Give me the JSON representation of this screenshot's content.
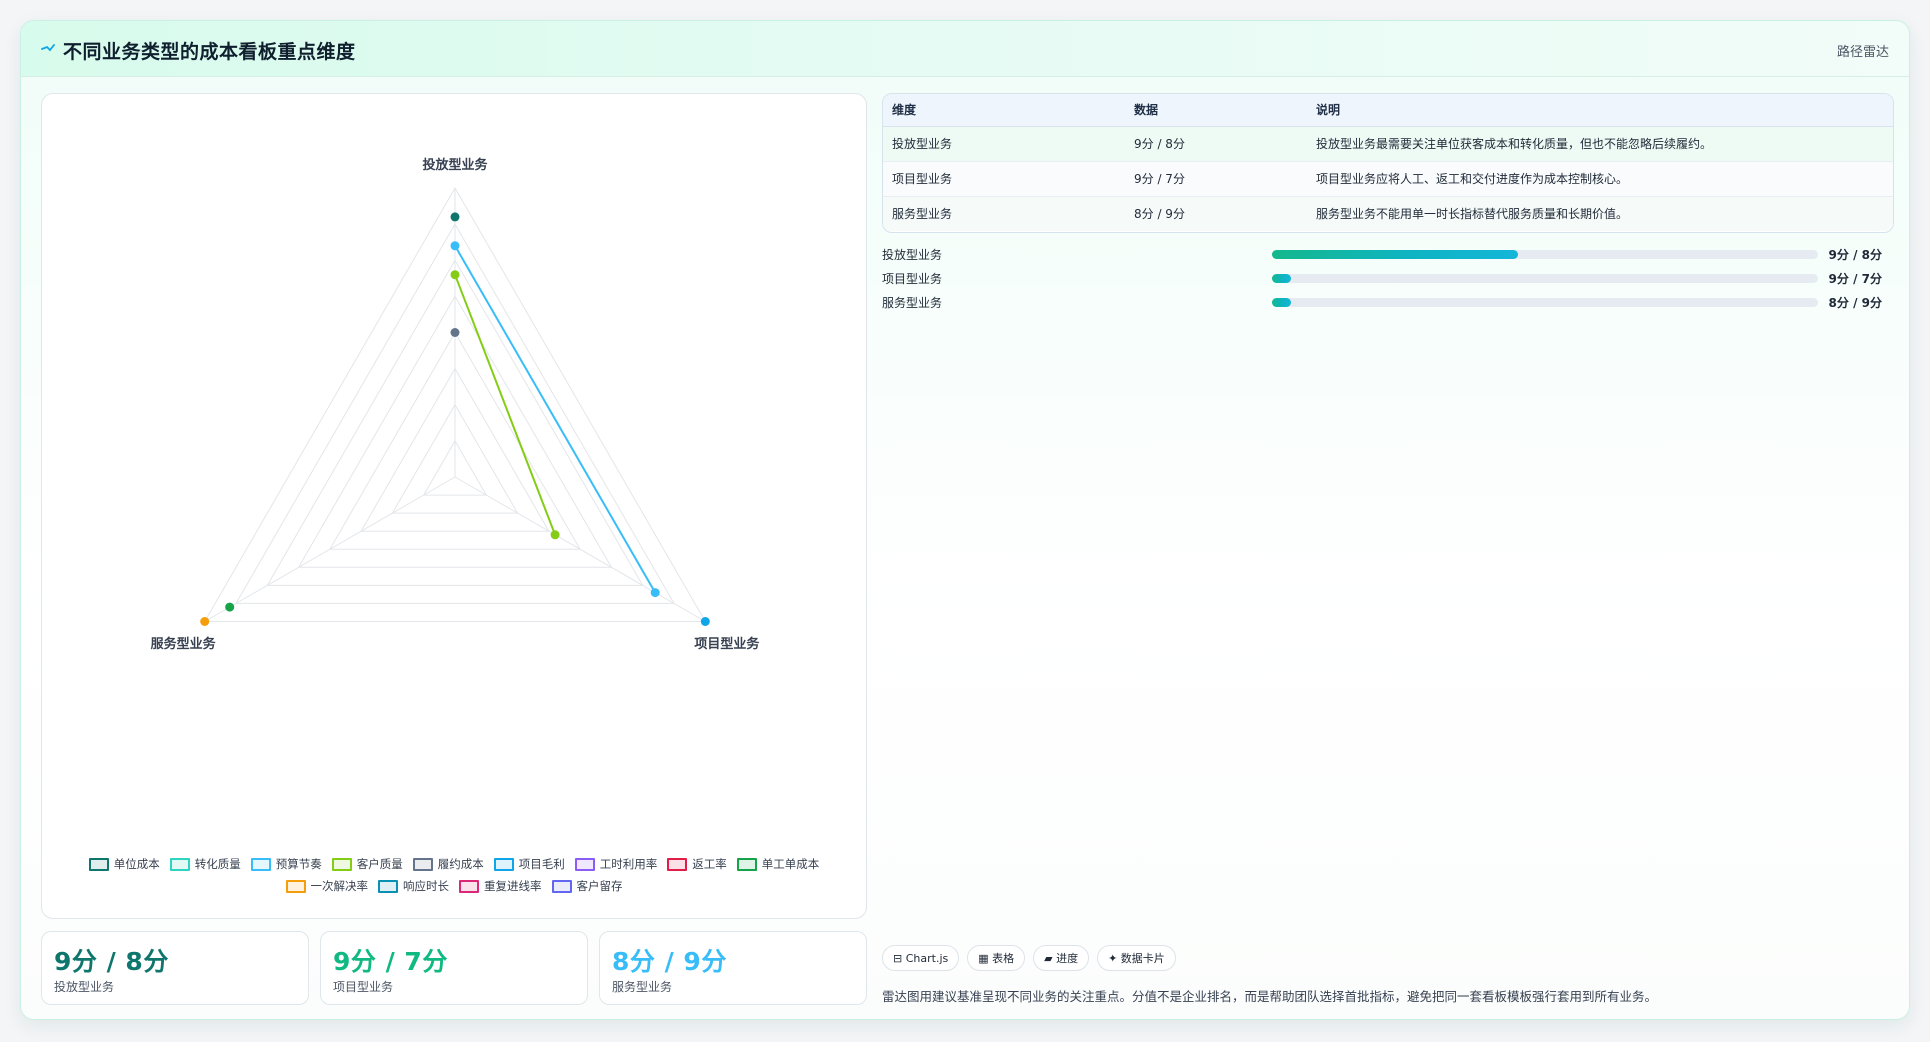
{
  "header": {
    "title": "不同业务类型的成本看板重点维度",
    "chart_type_label": "路径雷达",
    "icon": "sparkle-icon"
  },
  "chart_data": {
    "type": "radar",
    "axes": [
      "投放型业务",
      "项目型业务",
      "服务型业务"
    ],
    "r_max": 10,
    "grid_rings": 8,
    "series": [
      {
        "name": "单位成本",
        "color": "#0f766e",
        "values": [
          9,
          null,
          null
        ]
      },
      {
        "name": "转化质量",
        "color": "#2dd4bf",
        "values": [
          null,
          null,
          null
        ]
      },
      {
        "name": "预算节奏",
        "color": "#38bdf8",
        "values": [
          8,
          8,
          null
        ]
      },
      {
        "name": "客户质量",
        "color": "#84cc16",
        "values": [
          7,
          4,
          null
        ]
      },
      {
        "name": "履约成本",
        "color": "#64748b",
        "values": [
          5,
          null,
          null
        ]
      },
      {
        "name": "项目毛利",
        "color": "#0ea5e9",
        "values": [
          null,
          10,
          null
        ]
      },
      {
        "name": "工时利用率",
        "color": "#8b5cf6",
        "values": [
          null,
          null,
          null
        ]
      },
      {
        "name": "返工率",
        "color": "#e11d48",
        "values": [
          null,
          null,
          null
        ]
      },
      {
        "name": "单工单成本",
        "color": "#16a34a",
        "values": [
          null,
          null,
          9
        ]
      },
      {
        "name": "一次解决率",
        "color": "#f59e0b",
        "values": [
          null,
          null,
          10
        ]
      },
      {
        "name": "响应时长",
        "color": "#0891b2",
        "values": [
          null,
          null,
          null
        ]
      },
      {
        "name": "重复进线率",
        "color": "#db2777",
        "values": [
          null,
          null,
          null
        ]
      },
      {
        "name": "客户留存",
        "color": "#6366f1",
        "values": [
          null,
          null,
          null
        ]
      }
    ]
  },
  "table": {
    "headers": [
      "维度",
      "数据",
      "说明"
    ],
    "rows": [
      [
        "投放型业务",
        "9分 / 8分",
        "投放型业务最需要关注单位获客成本和转化质量，但也不能忽略后续履约。"
      ],
      [
        "项目型业务",
        "9分 / 7分",
        "项目型业务应将人工、返工和交付进度作为成本控制核心。"
      ],
      [
        "服务型业务",
        "8分 / 9分",
        "服务型业务不能用单一时长指标替代服务质量和长期价值。"
      ]
    ]
  },
  "progress": [
    {
      "label": "投放型业务",
      "value": "9分 / 8分",
      "fraction": 0.45
    },
    {
      "label": "项目型业务",
      "value": "9分 / 7分",
      "fraction": 0.035
    },
    {
      "label": "服务型业务",
      "value": "8分 / 9分",
      "fraction": 0.035
    }
  ],
  "stats": [
    {
      "value": "9分 / 8分",
      "label": "投放型业务",
      "color": "#0f766e"
    },
    {
      "value": "9分 / 7分",
      "label": "项目型业务",
      "color": "#10b981"
    },
    {
      "value": "8分 / 9分",
      "label": "服务型业务",
      "color": "#38bdf8"
    }
  ],
  "tags": [
    {
      "label": "⊟ Chart.js",
      "name": "tag-chartjs"
    },
    {
      "label": "▦ 表格",
      "name": "tag-table"
    },
    {
      "label": "▰ 进度",
      "name": "tag-progress"
    },
    {
      "label": "✦ 数据卡片",
      "name": "tag-data-card"
    }
  ],
  "note": "雷达图用建议基准呈现不同业务的关注重点。分值不是企业排名，而是帮助团队选择首批指标，避免把同一套看板模板强行套用到所有业务。"
}
